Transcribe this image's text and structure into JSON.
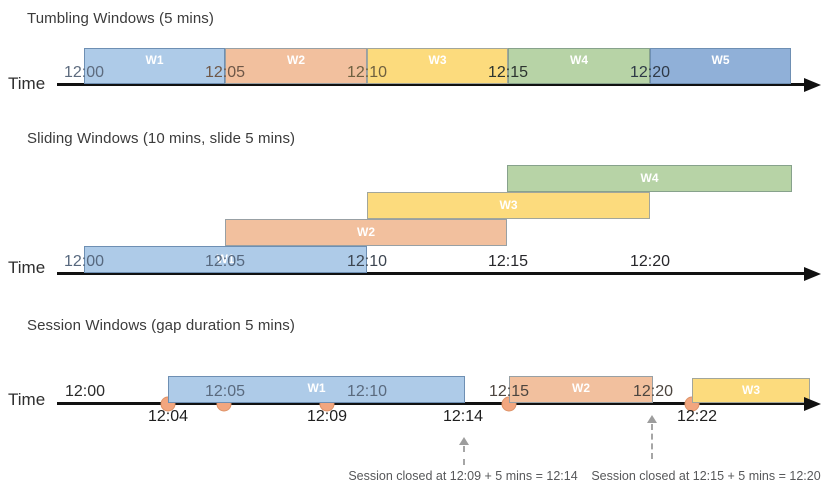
{
  "diagram": {
    "sections": [
      {
        "title": "Tumbling Windows (5 mins)",
        "axis_label": "Time",
        "ticks": [
          "12:00",
          "12:05",
          "12:10",
          "12:15",
          "12:20"
        ],
        "windows": [
          {
            "label": "W1",
            "start": "12:00",
            "end": "12:05",
            "color": "blue"
          },
          {
            "label": "W2",
            "start": "12:05",
            "end": "12:10",
            "color": "orange"
          },
          {
            "label": "W3",
            "start": "12:10",
            "end": "12:15",
            "color": "yellow"
          },
          {
            "label": "W4",
            "start": "12:15",
            "end": "12:20",
            "color": "green"
          },
          {
            "label": "W5",
            "start": "12:20",
            "end": "",
            "color": "periwinkle"
          }
        ]
      },
      {
        "title": "Sliding Windows (10 mins, slide 5 mins)",
        "axis_label": "Time",
        "ticks": [
          "12:00",
          "12:05",
          "12:10",
          "12:15",
          "12:20"
        ],
        "windows": [
          {
            "label": "W1",
            "start": "12:00",
            "end": "12:10",
            "color": "blue"
          },
          {
            "label": "W2",
            "start": "12:05",
            "end": "12:15",
            "color": "orange"
          },
          {
            "label": "W3",
            "start": "12:10",
            "end": "12:20",
            "color": "yellow"
          },
          {
            "label": "W4",
            "start": "12:15",
            "end": "",
            "color": "green"
          }
        ]
      },
      {
        "title": "Session Windows (gap duration 5 mins)",
        "axis_label": "Time",
        "ticks": [
          "12:00",
          "12:05",
          "12:10",
          "12:15",
          "12:20"
        ],
        "windows": [
          {
            "label": "W1",
            "start": "12:04",
            "end": "12:14",
            "color": "blue"
          },
          {
            "label": "W2",
            "start": "12:15",
            "end": "12:20",
            "color": "orange"
          },
          {
            "label": "W3",
            "start": "12:22",
            "end": "",
            "color": "yellow"
          }
        ],
        "events": [
          "12:04",
          "12:05",
          "12:09",
          "12:15",
          "12:22"
        ],
        "event_labels": [
          "12:04",
          "12:09",
          "12:14",
          "12:22"
        ],
        "annotations": [
          "Session closed at 12:09 + 5 mins = 12:14",
          "Session closed at 12:15 + 5 mins = 12:20"
        ]
      }
    ],
    "colors": {
      "window_blue": "#aecbe8",
      "window_orange": "#f2c09e",
      "window_yellow": "#fcdb7d",
      "window_green": "#b7d3a6",
      "window_periwinkle": "#90b0d8",
      "event_dot": "#f2a67f",
      "axis_line": "#111111"
    }
  }
}
